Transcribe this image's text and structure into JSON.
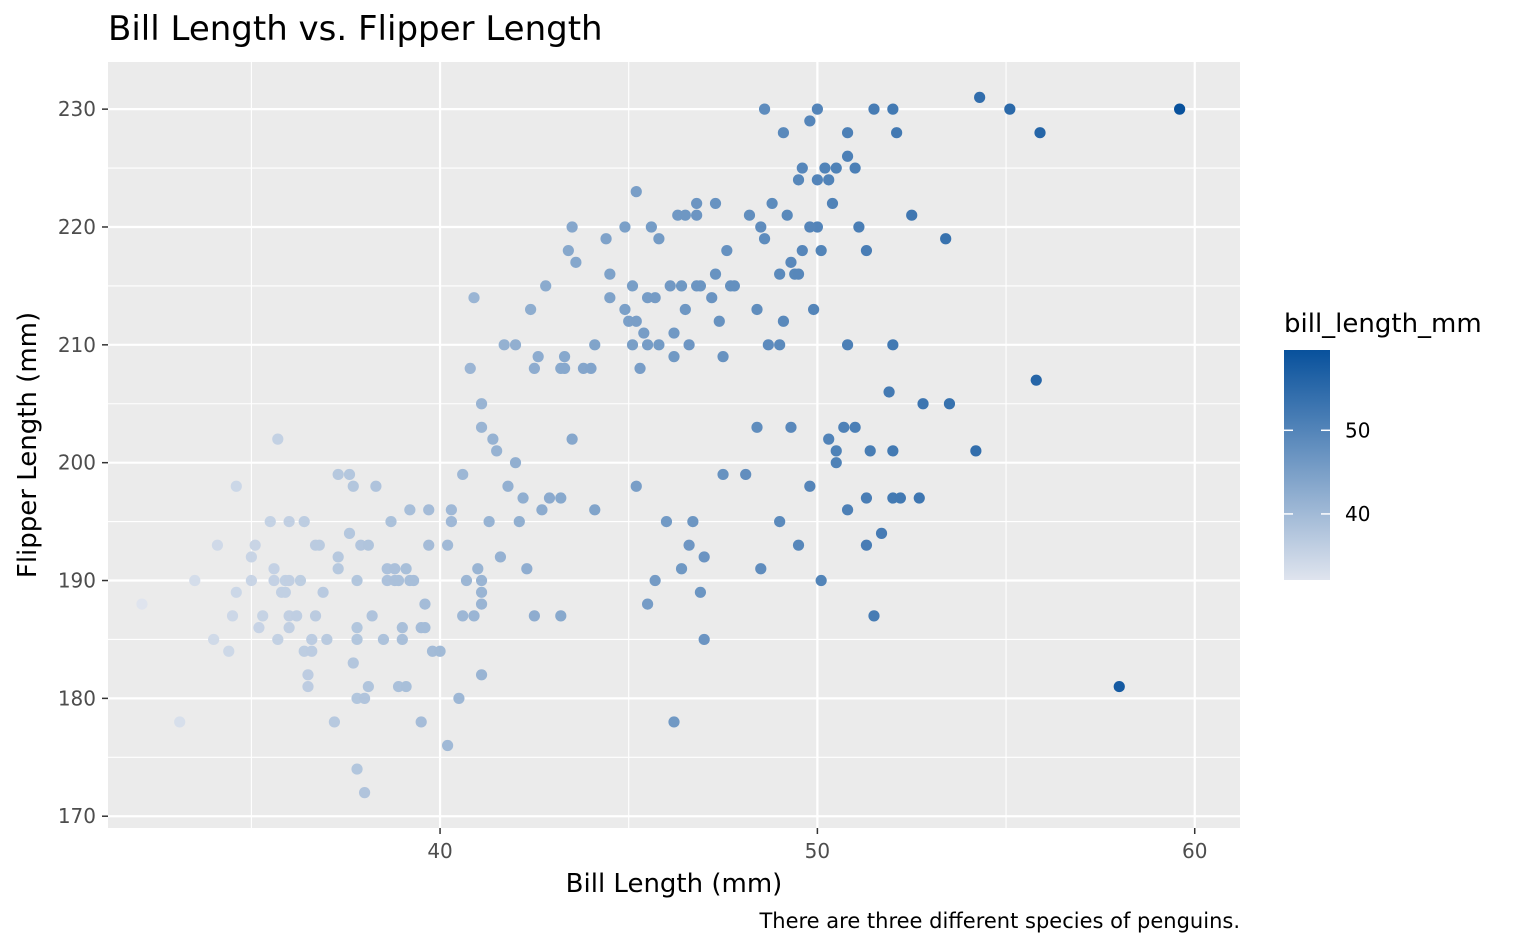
{
  "chart_data": {
    "type": "scatter",
    "title": "Bill Length vs. Flipper Length",
    "xlabel": "Bill Length (mm)",
    "ylabel": "Flipper Length (mm)",
    "caption": "There are three different species of penguins.",
    "xlim": [
      31.2,
      61.2
    ],
    "ylim": [
      169,
      234
    ],
    "x_ticks": [
      40,
      50,
      60
    ],
    "y_ticks": [
      170,
      180,
      190,
      200,
      210,
      220,
      230
    ],
    "grid": true,
    "panel_background": "#ebebeb",
    "grid_color": "#ffffff",
    "legend": {
      "title": "bill_length_mm",
      "placement": "right",
      "type": "colorbar",
      "ticks": [
        40,
        50
      ],
      "range": [
        32.1,
        59.6
      ],
      "low_color": "#dfe4ee",
      "high_color": "#08519c"
    },
    "series": [
      {
        "color_by": "x",
        "points": [
          [
            32.1,
            188
          ],
          [
            33.1,
            178
          ],
          [
            33.5,
            190
          ],
          [
            34.0,
            185
          ],
          [
            34.1,
            193
          ],
          [
            34.4,
            184
          ],
          [
            34.5,
            187
          ],
          [
            34.6,
            198
          ],
          [
            34.6,
            189
          ],
          [
            35.0,
            190
          ],
          [
            35.0,
            192
          ],
          [
            35.1,
            193
          ],
          [
            35.2,
            186
          ],
          [
            35.3,
            187
          ],
          [
            35.5,
            195
          ],
          [
            35.6,
            190
          ],
          [
            35.6,
            191
          ],
          [
            35.7,
            202
          ],
          [
            35.7,
            185
          ],
          [
            35.8,
            189
          ],
          [
            35.9,
            190
          ],
          [
            35.9,
            189
          ],
          [
            36.0,
            195
          ],
          [
            36.0,
            190
          ],
          [
            36.0,
            186
          ],
          [
            36.0,
            187
          ],
          [
            36.2,
            187
          ],
          [
            36.3,
            190
          ],
          [
            36.4,
            184
          ],
          [
            36.4,
            195
          ],
          [
            36.5,
            182
          ],
          [
            36.5,
            181
          ],
          [
            36.6,
            184
          ],
          [
            36.6,
            185
          ],
          [
            36.7,
            187
          ],
          [
            36.7,
            193
          ],
          [
            36.8,
            193
          ],
          [
            36.9,
            189
          ],
          [
            37.0,
            185
          ],
          [
            37.2,
            178
          ],
          [
            37.3,
            192
          ],
          [
            37.3,
            191
          ],
          [
            37.3,
            199
          ],
          [
            37.6,
            199
          ],
          [
            37.6,
            194
          ],
          [
            37.7,
            183
          ],
          [
            37.7,
            198
          ],
          [
            37.8,
            185
          ],
          [
            37.8,
            180
          ],
          [
            37.8,
            174
          ],
          [
            37.8,
            186
          ],
          [
            37.8,
            190
          ],
          [
            37.9,
            193
          ],
          [
            38.0,
            180
          ],
          [
            38.0,
            172
          ],
          [
            38.1,
            193
          ],
          [
            38.1,
            181
          ],
          [
            38.2,
            187
          ],
          [
            38.3,
            198
          ],
          [
            38.5,
            185
          ],
          [
            38.6,
            191
          ],
          [
            38.6,
            190
          ],
          [
            38.7,
            195
          ],
          [
            38.8,
            191
          ],
          [
            38.8,
            190
          ],
          [
            38.9,
            181
          ],
          [
            38.9,
            190
          ],
          [
            39.0,
            186
          ],
          [
            39.0,
            185
          ],
          [
            39.1,
            181
          ],
          [
            39.1,
            191
          ],
          [
            39.2,
            196
          ],
          [
            39.2,
            190
          ],
          [
            39.3,
            190
          ],
          [
            39.5,
            178
          ],
          [
            39.5,
            186
          ],
          [
            39.6,
            188
          ],
          [
            39.6,
            186
          ],
          [
            39.7,
            196
          ],
          [
            39.7,
            193
          ],
          [
            39.8,
            184
          ],
          [
            40.0,
            184
          ],
          [
            40.2,
            176
          ],
          [
            40.2,
            193
          ],
          [
            40.3,
            196
          ],
          [
            40.3,
            195
          ],
          [
            40.5,
            180
          ],
          [
            40.6,
            187
          ],
          [
            40.6,
            199
          ],
          [
            40.7,
            190
          ],
          [
            40.8,
            208
          ],
          [
            40.9,
            187
          ],
          [
            40.9,
            214
          ],
          [
            41.0,
            191
          ],
          [
            41.1,
            190
          ],
          [
            41.1,
            189
          ],
          [
            41.1,
            188
          ],
          [
            41.1,
            182
          ],
          [
            41.1,
            205
          ],
          [
            41.1,
            203
          ],
          [
            41.3,
            195
          ],
          [
            41.4,
            202
          ],
          [
            41.5,
            201
          ],
          [
            41.6,
            192
          ],
          [
            41.8,
            198
          ],
          [
            42.0,
            200
          ],
          [
            42.1,
            195
          ],
          [
            42.2,
            197
          ],
          [
            42.3,
            191
          ],
          [
            42.5,
            187
          ],
          [
            42.7,
            196
          ],
          [
            42.9,
            197
          ],
          [
            43.2,
            197
          ],
          [
            43.2,
            187
          ],
          [
            43.5,
            202
          ],
          [
            44.1,
            196
          ],
          [
            45.2,
            198
          ],
          [
            45.5,
            188
          ],
          [
            45.7,
            190
          ],
          [
            46.0,
            195
          ],
          [
            46.2,
            178
          ],
          [
            46.4,
            191
          ],
          [
            46.6,
            193
          ],
          [
            46.7,
            195
          ],
          [
            46.9,
            189
          ],
          [
            47.0,
            192
          ],
          [
            47.0,
            185
          ],
          [
            47.5,
            199
          ],
          [
            48.1,
            199
          ],
          [
            48.5,
            191
          ],
          [
            49.0,
            195
          ],
          [
            49.5,
            193
          ],
          [
            49.8,
            198
          ],
          [
            50.1,
            190
          ],
          [
            50.3,
            202
          ],
          [
            50.5,
            201
          ],
          [
            50.5,
            200
          ],
          [
            50.7,
            203
          ],
          [
            50.8,
            196
          ],
          [
            51.0,
            203
          ],
          [
            51.3,
            197
          ],
          [
            51.3,
            193
          ],
          [
            51.4,
            201
          ],
          [
            51.5,
            187
          ],
          [
            51.7,
            194
          ],
          [
            52.0,
            197
          ],
          [
            52.0,
            201
          ],
          [
            52.2,
            197
          ],
          [
            52.7,
            197
          ],
          [
            52.8,
            205
          ],
          [
            53.5,
            205
          ],
          [
            54.2,
            201
          ],
          [
            41.7,
            210
          ],
          [
            42.0,
            210
          ],
          [
            42.4,
            213
          ],
          [
            42.5,
            208
          ],
          [
            42.6,
            209
          ],
          [
            42.8,
            215
          ],
          [
            43.2,
            208
          ],
          [
            43.3,
            209
          ],
          [
            43.4,
            218
          ],
          [
            43.5,
            220
          ],
          [
            43.6,
            217
          ],
          [
            43.8,
            208
          ],
          [
            44.0,
            208
          ],
          [
            44.1,
            210
          ],
          [
            44.4,
            219
          ],
          [
            44.5,
            214
          ],
          [
            44.5,
            216
          ],
          [
            44.9,
            213
          ],
          [
            45.0,
            212
          ],
          [
            45.1,
            210
          ],
          [
            45.1,
            215
          ],
          [
            45.2,
            212
          ],
          [
            45.2,
            223
          ],
          [
            45.3,
            208
          ],
          [
            45.4,
            211
          ],
          [
            45.5,
            210
          ],
          [
            45.5,
            214
          ],
          [
            45.6,
            220
          ],
          [
            45.7,
            214
          ],
          [
            45.8,
            210
          ],
          [
            46.1,
            215
          ],
          [
            46.2,
            211
          ],
          [
            46.2,
            209
          ],
          [
            46.3,
            221
          ],
          [
            46.4,
            215
          ],
          [
            46.5,
            213
          ],
          [
            46.5,
            221
          ],
          [
            46.6,
            210
          ],
          [
            46.8,
            215
          ],
          [
            46.8,
            222
          ],
          [
            47.2,
            214
          ],
          [
            47.3,
            216
          ],
          [
            47.4,
            212
          ],
          [
            47.5,
            209
          ],
          [
            47.6,
            218
          ],
          [
            47.7,
            215
          ],
          [
            47.8,
            215
          ],
          [
            48.2,
            221
          ],
          [
            48.4,
            213
          ],
          [
            48.5,
            220
          ],
          [
            48.6,
            219
          ],
          [
            48.7,
            210
          ],
          [
            48.8,
            222
          ],
          [
            49.0,
            216
          ],
          [
            49.1,
            212
          ],
          [
            49.2,
            221
          ],
          [
            49.3,
            217
          ],
          [
            49.4,
            216
          ],
          [
            49.5,
            224
          ],
          [
            49.6,
            225
          ],
          [
            49.8,
            229
          ],
          [
            50.0,
            224
          ],
          [
            50.0,
            230
          ],
          [
            50.1,
            218
          ],
          [
            50.2,
            225
          ],
          [
            50.4,
            222
          ],
          [
            50.5,
            225
          ],
          [
            50.8,
            226
          ],
          [
            51.1,
            220
          ],
          [
            51.5,
            230
          ],
          [
            52.1,
            228
          ],
          [
            52.5,
            221
          ],
          [
            53.4,
            219
          ],
          [
            54.3,
            231
          ],
          [
            55.1,
            230
          ],
          [
            55.9,
            228
          ],
          [
            59.6,
            230
          ],
          [
            58.0,
            181
          ],
          [
            55.8,
            207
          ],
          [
            49.6,
            218
          ],
          [
            48.4,
            203
          ],
          [
            49.3,
            203
          ],
          [
            49.9,
            213
          ],
          [
            51.3,
            218
          ],
          [
            52.0,
            210
          ],
          [
            51.9,
            206
          ],
          [
            50.8,
            210
          ],
          [
            49.0,
            210
          ],
          [
            45.8,
            219
          ],
          [
            47.3,
            222
          ],
          [
            48.6,
            230
          ],
          [
            49.1,
            228
          ],
          [
            50.0,
            220
          ],
          [
            50.8,
            228
          ],
          [
            50.3,
            224
          ],
          [
            51.0,
            225
          ],
          [
            52.0,
            230
          ],
          [
            49.8,
            220
          ],
          [
            46.8,
            221
          ],
          [
            44.9,
            220
          ],
          [
            43.3,
            208
          ],
          [
            49.5,
            216
          ],
          [
            46.9,
            215
          ]
        ]
      }
    ]
  }
}
